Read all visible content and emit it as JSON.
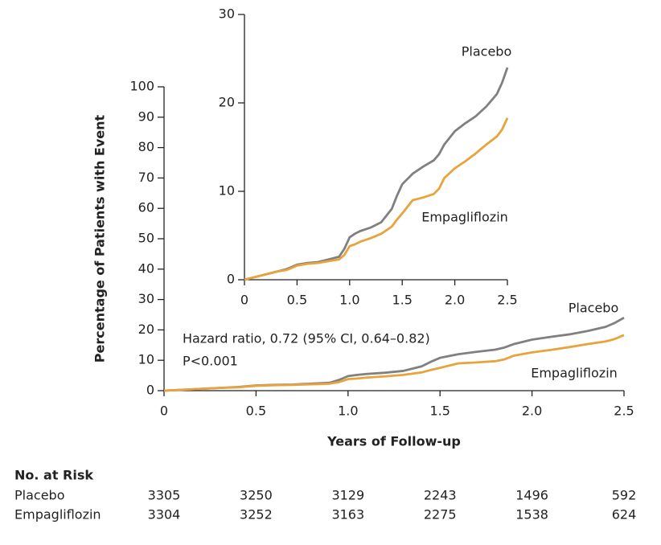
{
  "chart_data": [
    {
      "type": "line",
      "x_label": "Years of Follow-up",
      "y_label": "Percentage of Patients with Event",
      "annotations": [
        "Hazard ratio, 0.72 (95% CI, 0.64–0.82)",
        "P<0.001"
      ],
      "x": [
        0,
        0.1,
        0.2,
        0.3,
        0.4,
        0.5,
        0.6,
        0.7,
        0.8,
        0.9,
        0.95,
        1.0,
        1.05,
        1.1,
        1.2,
        1.3,
        1.4,
        1.45,
        1.5,
        1.6,
        1.7,
        1.8,
        1.85,
        1.9,
        2.0,
        2.1,
        2.2,
        2.3,
        2.4,
        2.45,
        2.5
      ],
      "series": [
        {
          "name": "Placebo",
          "color": "#808080",
          "values": [
            0,
            0.3,
            0.6,
            0.9,
            1.2,
            1.7,
            1.9,
            2.0,
            2.3,
            2.6,
            3.5,
            4.8,
            5.2,
            5.5,
            5.9,
            6.5,
            8.0,
            9.5,
            10.8,
            12.0,
            12.8,
            13.5,
            14.2,
            15.3,
            16.8,
            17.7,
            18.5,
            19.6,
            21.0,
            22.3,
            24.0
          ]
        },
        {
          "name": "Empagliflozin",
          "color": "#e8a33d",
          "values": [
            0,
            0.3,
            0.6,
            0.9,
            1.1,
            1.6,
            1.8,
            1.9,
            2.1,
            2.3,
            2.8,
            3.8,
            4.0,
            4.3,
            4.7,
            5.2,
            6.0,
            6.8,
            7.5,
            9.0,
            9.3,
            9.7,
            10.3,
            11.5,
            12.6,
            13.4,
            14.3,
            15.3,
            16.2,
            17.0,
            18.3
          ]
        }
      ],
      "xlim": [
        0,
        2.5
      ],
      "ylim": [
        0,
        100
      ],
      "xticks": [
        0,
        0.5,
        {
          "value": 1,
          "label": "1.0"
        },
        1.5,
        {
          "value": 2,
          "label": "2.0"
        },
        2.5
      ],
      "yticks": [
        0,
        10,
        20,
        30,
        40,
        50,
        60,
        70,
        80,
        90,
        100
      ]
    },
    {
      "type": "line",
      "x": [
        0,
        0.1,
        0.2,
        0.3,
        0.4,
        0.5,
        0.6,
        0.7,
        0.8,
        0.9,
        0.95,
        1.0,
        1.05,
        1.1,
        1.2,
        1.3,
        1.4,
        1.45,
        1.5,
        1.6,
        1.7,
        1.8,
        1.85,
        1.9,
        2.0,
        2.1,
        2.2,
        2.3,
        2.4,
        2.45,
        2.5
      ],
      "series": [
        {
          "name": "Placebo",
          "color": "#808080",
          "values": [
            0,
            0.3,
            0.6,
            0.9,
            1.2,
            1.7,
            1.9,
            2.0,
            2.3,
            2.6,
            3.5,
            4.8,
            5.2,
            5.5,
            5.9,
            6.5,
            8.0,
            9.5,
            10.8,
            12.0,
            12.8,
            13.5,
            14.2,
            15.3,
            16.8,
            17.7,
            18.5,
            19.6,
            21.0,
            22.3,
            24.0
          ]
        },
        {
          "name": "Empagliflozin",
          "color": "#e8a33d",
          "values": [
            0,
            0.3,
            0.6,
            0.9,
            1.1,
            1.6,
            1.8,
            1.9,
            2.1,
            2.3,
            2.8,
            3.8,
            4.0,
            4.3,
            4.7,
            5.2,
            6.0,
            6.8,
            7.5,
            9.0,
            9.3,
            9.7,
            10.3,
            11.5,
            12.6,
            13.4,
            14.3,
            15.3,
            16.2,
            17.0,
            18.3
          ]
        }
      ],
      "xlim": [
        0,
        2.5
      ],
      "ylim": [
        0,
        30
      ],
      "xticks": [
        0,
        0.5,
        {
          "value": 1,
          "label": "1.0"
        },
        1.5,
        {
          "value": 2,
          "label": "2.0"
        },
        2.5
      ],
      "yticks": [
        0,
        10,
        20,
        30
      ]
    }
  ],
  "risk_table": {
    "title": "No. at Risk",
    "rows": [
      {
        "label": "Placebo",
        "values": [
          3305,
          3250,
          3129,
          2243,
          1496,
          592
        ]
      },
      {
        "label": "Empagliflozin",
        "values": [
          3304,
          3252,
          3163,
          2275,
          1538,
          624
        ]
      }
    ]
  }
}
